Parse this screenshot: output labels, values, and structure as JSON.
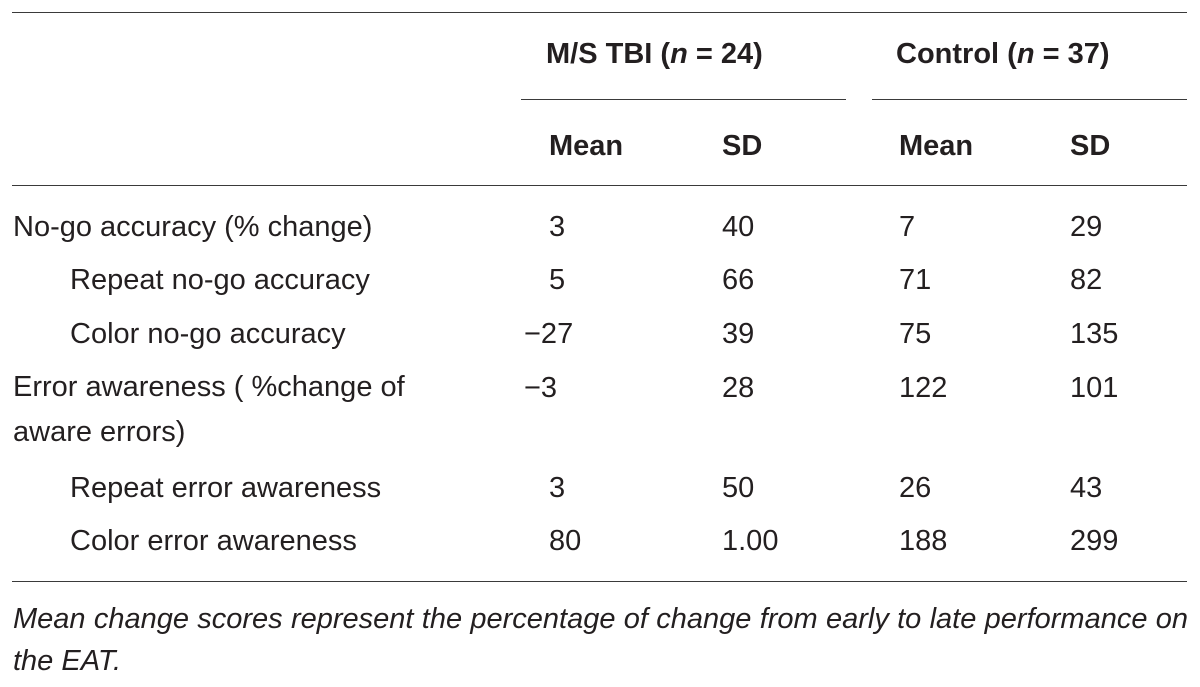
{
  "table": {
    "groups": [
      {
        "name": "M/S TBI",
        "n_label": "n",
        "n_value": "24"
      },
      {
        "name": "Control",
        "n_label": "n",
        "n_value": "37"
      }
    ],
    "subheaders": [
      "Mean",
      "SD",
      "Mean",
      "SD"
    ],
    "rows": [
      {
        "label": "No-go accuracy (% change)",
        "indent": false,
        "values": [
          "3",
          "40",
          "7",
          "29"
        ]
      },
      {
        "label": "Repeat no-go accuracy",
        "indent": true,
        "values": [
          "5",
          "66",
          "71",
          "82"
        ]
      },
      {
        "label": "Color no-go accuracy",
        "indent": true,
        "values": [
          "−27",
          "39",
          "75",
          "135"
        ]
      },
      {
        "label": "Error awareness ( %change of aware errors)",
        "indent": false,
        "values": [
          "−3",
          "28",
          "122",
          "101"
        ]
      },
      {
        "label": "Repeat error awareness",
        "indent": true,
        "values": [
          "3",
          "50",
          "26",
          "43"
        ]
      },
      {
        "label": "Color error awareness",
        "indent": true,
        "values": [
          "80",
          "1.00",
          "188",
          "299"
        ]
      }
    ],
    "footnote": "Mean change scores represent the percentage of change from early to late performance on the EAT."
  }
}
